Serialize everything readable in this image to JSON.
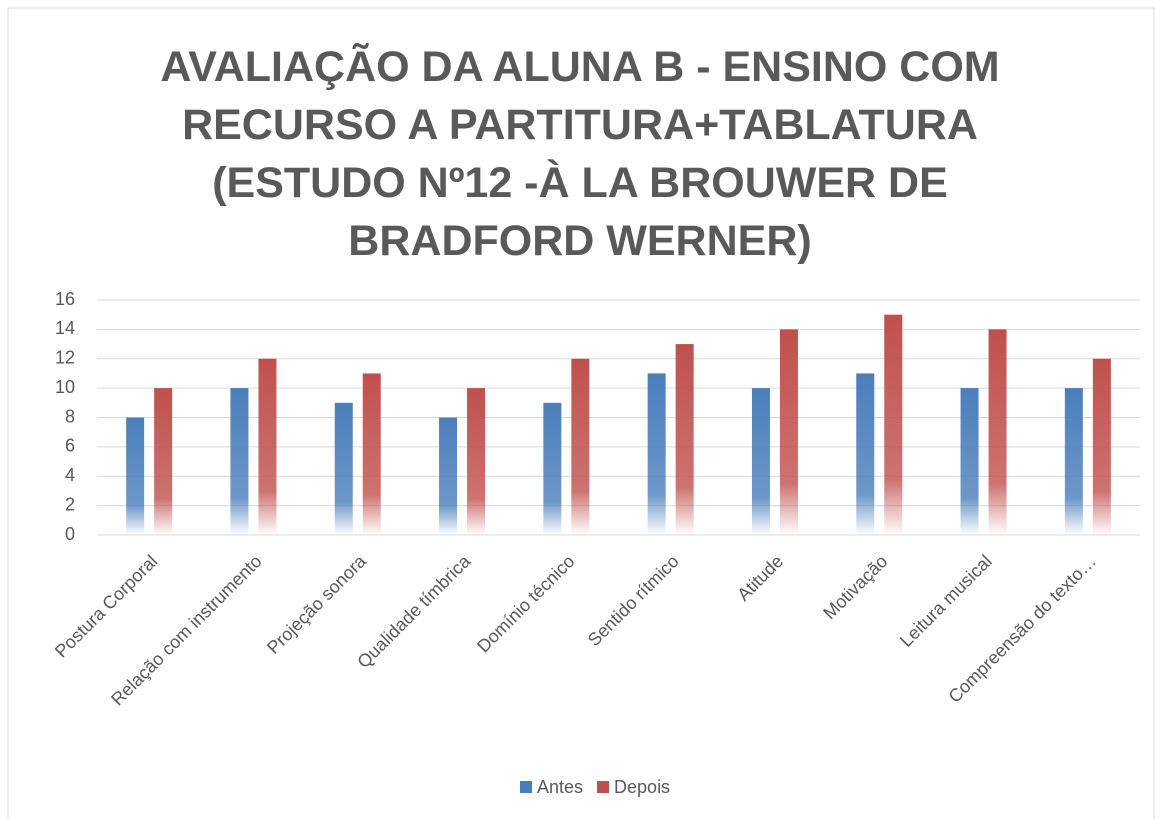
{
  "chart_data": {
    "type": "bar",
    "title": "AVALIAÇÃO DA ALUNA B - ENSINO COM RECURSO A PARTITURA+TABLATURA (ESTUDO Nº12 -À LA BROUWER DE BRADFORD WERNER)",
    "categories": [
      "Postura Corporal",
      "Relação com instrumento",
      "Projeção sonora",
      "Qualidade tímbrica",
      "Domínio técnico",
      "Sentido rítmico",
      "Atitude",
      "Motivação",
      "Leitura musical",
      "Compreensão do texto…"
    ],
    "series": [
      {
        "name": "Antes",
        "color": "#4a7ebb",
        "values": [
          8,
          10,
          9,
          8,
          9,
          11,
          10,
          11,
          10,
          10
        ]
      },
      {
        "name": "Depois",
        "color": "#c0504d",
        "values": [
          10,
          12,
          11,
          10,
          12,
          13,
          14,
          15,
          14,
          12
        ]
      }
    ],
    "ylim": [
      0,
      16
    ],
    "yticks": [
      0,
      2,
      4,
      6,
      8,
      10,
      12,
      14,
      16
    ],
    "grid": true,
    "legend": "bottom"
  }
}
